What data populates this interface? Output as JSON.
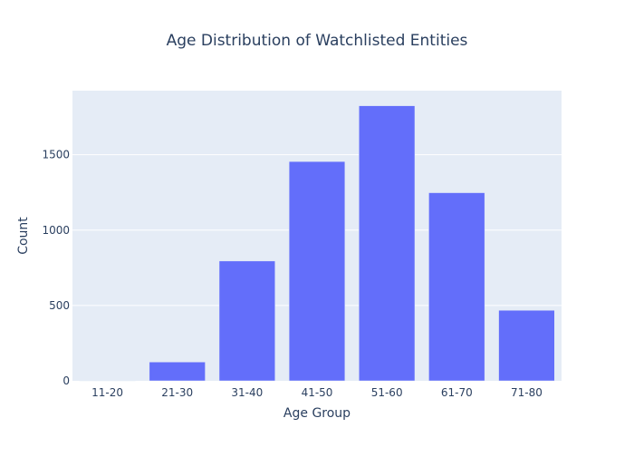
{
  "chart_data": {
    "type": "bar",
    "title": "Age Distribution of Watchlisted Entities",
    "xlabel": "Age Group",
    "ylabel": "Count",
    "categories": [
      "11-20",
      "21-30",
      "31-40",
      "41-50",
      "51-60",
      "61-70",
      "71-80"
    ],
    "values": [
      3,
      125,
      795,
      1455,
      1825,
      1248,
      468
    ],
    "ylim": [
      0,
      1925
    ],
    "yticks": [
      0,
      500,
      1000,
      1500
    ],
    "grid": true,
    "legend": "none",
    "colors": {
      "bar": "#636efa",
      "plot_background": "#e5ecf6",
      "grid": "#ffffff",
      "text": "#2a3f5f"
    }
  }
}
